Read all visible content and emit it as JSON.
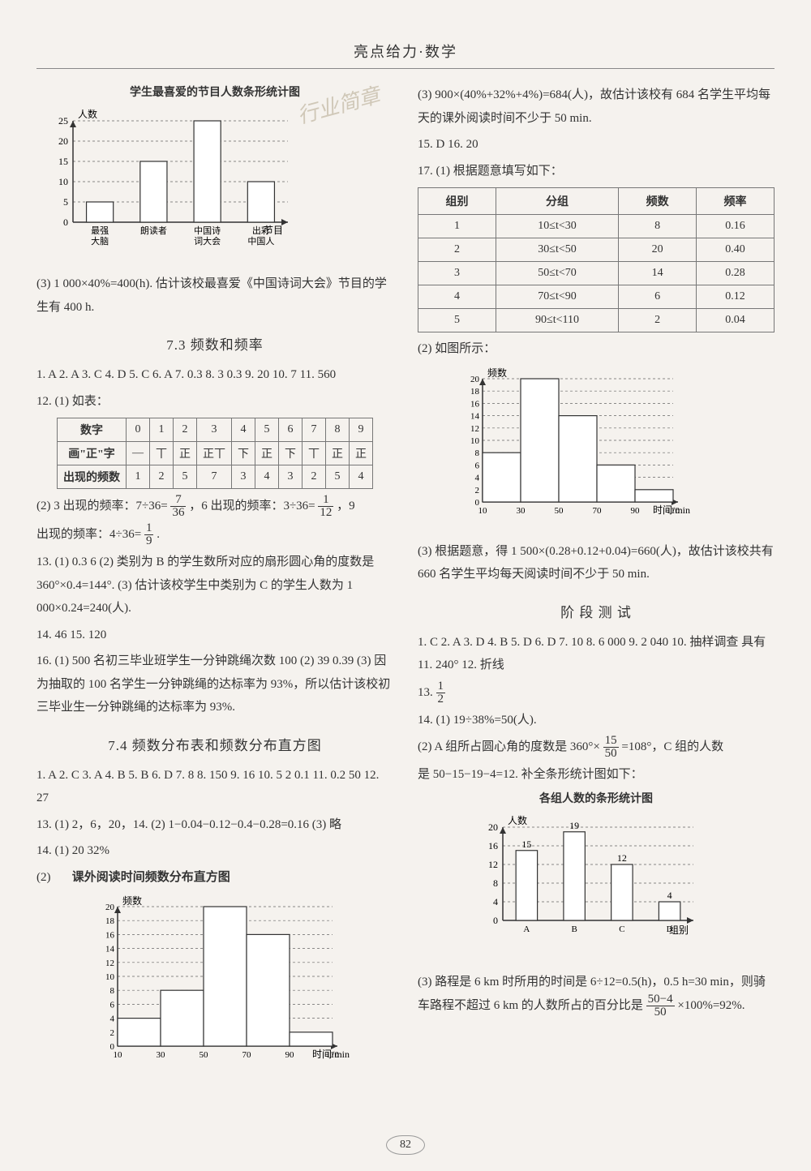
{
  "header": "亮点给力·数学",
  "page_number": "82",
  "watermark_top": "行业简章",
  "left": {
    "chart1": {
      "title": "学生最喜爱的节目人数条形统计图",
      "ylabel": "人数",
      "xlabel": "节目",
      "categories": [
        "最强\n大脑",
        "朗读者",
        "中国诗\n词大会",
        "出彩\n中国人"
      ],
      "values": [
        5,
        15,
        25,
        10
      ],
      "ylim": [
        0,
        25
      ],
      "ytick_step": 5,
      "bar_color": "#ffffff",
      "bar_border": "#333",
      "grid_color": "#666",
      "axis_color": "#333",
      "bar_width": 0.5
    },
    "para_after_chart1": "(3) 1 000×40%=400(h). 估计该校最喜爱《中国诗词大会》节目的学生有 400 h.",
    "sec73_title": "7.3  频数和频率",
    "sec73_answers": "1. A  2. A  3. C  4. D  5. C  6. A  7. 0.3  8. 3  0.3  9. 20  10. 7  11. 560",
    "sec73_q12_a": "12. (1) 如表：",
    "table_digits": {
      "row_labels": [
        "数字",
        "画\"正\"字",
        "出现的频数"
      ],
      "cols": [
        "0",
        "1",
        "2",
        "3",
        "4",
        "5",
        "6",
        "7",
        "8",
        "9"
      ],
      "tally": [
        "—",
        "丅",
        "正",
        "正丅",
        "下",
        "正",
        "下",
        "丅",
        "正",
        "正"
      ],
      "freq": [
        "1",
        "2",
        "5",
        "7",
        "3",
        "4",
        "3",
        "2",
        "5",
        "4"
      ]
    },
    "sec73_q12_b_pre": "(2) 3 出现的频率：7÷36=",
    "sec73_q12_b_mid1": "，6 出现的频率：3÷36=",
    "sec73_q12_b_mid2": "，9",
    "sec73_q12_b_line2_pre": "出现的频率：4÷36=",
    "sec73_q12_b_line2_post": ".",
    "sec73_q13": "13. (1) 0.3  6  (2) 类别为 B 的学生数所对应的扇形圆心角的度数是 360°×0.4=144°.  (3) 估计该校学生中类别为 C 的学生人数为 1 000×0.24=240(人).",
    "sec73_q14_15": "14. 46  15. 120",
    "sec73_q16": "16. (1) 500 名初三毕业班学生一分钟跳绳次数  100  (2) 39  0.39  (3) 因为抽取的 100 名学生一分钟跳绳的达标率为 93%，所以估计该校初三毕业生一分钟跳绳的达标率为 93%.",
    "sec74_title": "7.4  频数分布表和频数分布直方图",
    "sec74_answers": "1. A  2. C  3. A  4. B  5. B  6. D  7. 8  8. 150  9. 16  10. 5  2  0.1  11. 0.2  50  12. 27",
    "sec74_q13": "13. (1) 2，6，20，14.  (2) 1−0.04−0.12−0.4−0.28=0.16  (3) 略",
    "sec74_q14_a": "14. (1) 20  32%",
    "sec74_q14_b": "(2)",
    "hist1": {
      "title": "课外阅读时间频数分布直方图",
      "ylabel": "频数",
      "xlabel": "时间/min",
      "bins": [
        "10",
        "30",
        "50",
        "70",
        "90",
        "110"
      ],
      "values": [
        4,
        8,
        20,
        16,
        2
      ],
      "ylim": [
        0,
        20
      ],
      "ytick_step": 2,
      "bar_color": "#ffffff",
      "bar_border": "#333",
      "grid_color": "#666",
      "axis_color": "#333"
    }
  },
  "right": {
    "top_para": "(3) 900×(40%+32%+4%)=684(人)，故估计该校有 684 名学生平均每天的课外阅读时间不少于 50 min.",
    "q15_16": "15. D  16. 20",
    "q17_a": "17. (1) 根据题意填写如下：",
    "freq_table": {
      "headers": [
        "组别",
        "分组",
        "频数",
        "频率"
      ],
      "rows": [
        [
          "1",
          "10≤t<30",
          "8",
          "0.16"
        ],
        [
          "2",
          "30≤t<50",
          "20",
          "0.40"
        ],
        [
          "3",
          "50≤t<70",
          "14",
          "0.28"
        ],
        [
          "4",
          "70≤t<90",
          "6",
          "0.12"
        ],
        [
          "5",
          "90≤t<110",
          "2",
          "0.04"
        ]
      ]
    },
    "q17_b": "(2) 如图所示：",
    "hist2": {
      "ylabel": "频数",
      "xlabel": "时间/min",
      "bins": [
        "10",
        "30",
        "50",
        "70",
        "90",
        "110"
      ],
      "values": [
        8,
        20,
        14,
        6,
        2
      ],
      "ylim": [
        0,
        20
      ],
      "ytick_step": 2,
      "bar_color": "#ffffff",
      "bar_border": "#333",
      "grid_color": "#666",
      "axis_color": "#333"
    },
    "q17_c": "(3) 根据题意，得 1 500×(0.28+0.12+0.04)=660(人)，故估计该校共有 660 名学生平均每天阅读时间不少于 50 min.",
    "stage_title": "阶 段 测 试",
    "stage_answers": "1. C  2. A  3. D  4. B  5. D  6. D  7. 10  8. 6 000  9. 2 040  10. 抽样调查  具有  11. 240°  12. 折线",
    "q13_pre": "13. ",
    "q14_a": "14. (1) 19÷38%=50(人).",
    "q14_b_pre": "(2) A 组所占圆心角的度数是 360°×",
    "q14_b_post": "=108°，C 组的人数",
    "q14_b_line2": "是 50−15−19−4=12. 补全条形统计图如下：",
    "bar2": {
      "title": "各组人数的条形统计图",
      "ylabel": "人数",
      "xlabel": "组别",
      "categories": [
        "A",
        "B",
        "C",
        "D"
      ],
      "values": [
        15,
        19,
        12,
        4
      ],
      "value_labels": [
        "15",
        "19",
        "12",
        "4"
      ],
      "ylim": [
        0,
        20
      ],
      "ytick_step": 4,
      "bar_color": "#ffffff",
      "bar_border": "#333",
      "grid_color": "#666",
      "axis_color": "#333",
      "bar_width": 0.45
    },
    "q14_c_pre": "(3) 路程是 6 km 时所用的时间是 6÷12=0.5(h)，0.5 h=30 min，则骑车路程不超过 6 km 的人数所占的百分比是",
    "q14_c_post": "×100%=92%."
  }
}
